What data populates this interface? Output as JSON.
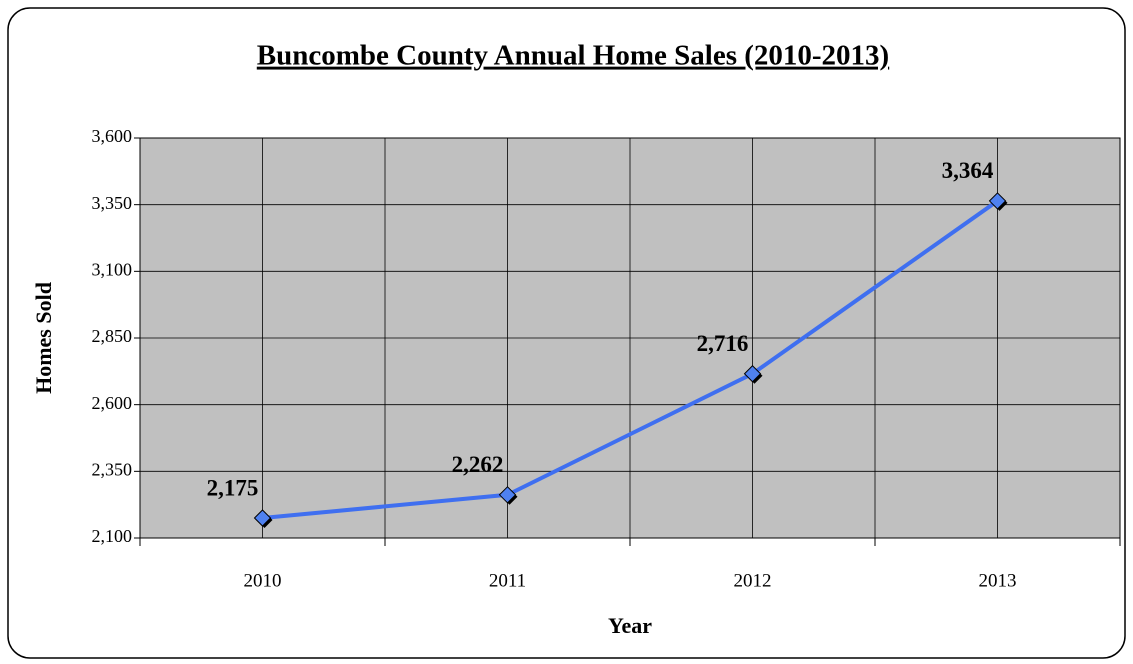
{
  "chart_data": {
    "type": "line",
    "title": "Buncombe County Annual Home Sales (2010-2013)",
    "x_label": "Year",
    "y_label": "Homes Sold",
    "categories": [
      "2010",
      "2011",
      "2012",
      "2013"
    ],
    "series": [
      {
        "name": "Homes Sold",
        "color": "#3f6ff0",
        "values": [
          2175,
          2262,
          2716,
          3364
        ],
        "value_labels": [
          "2,175",
          "2,262",
          "2,716",
          "3,364"
        ]
      }
    ],
    "ylim": [
      2100,
      3600
    ],
    "yticks": [
      {
        "value": 2100,
        "label": "2,100"
      },
      {
        "value": 2350,
        "label": "2,350"
      },
      {
        "value": 2600,
        "label": "2,600"
      },
      {
        "value": 2850,
        "label": "2,850"
      },
      {
        "value": 3100,
        "label": "3,100"
      },
      {
        "value": 3350,
        "label": "3,350"
      },
      {
        "value": 3600,
        "label": "3,600"
      }
    ],
    "grid": true,
    "plot_background": "#c0c0c0"
  }
}
